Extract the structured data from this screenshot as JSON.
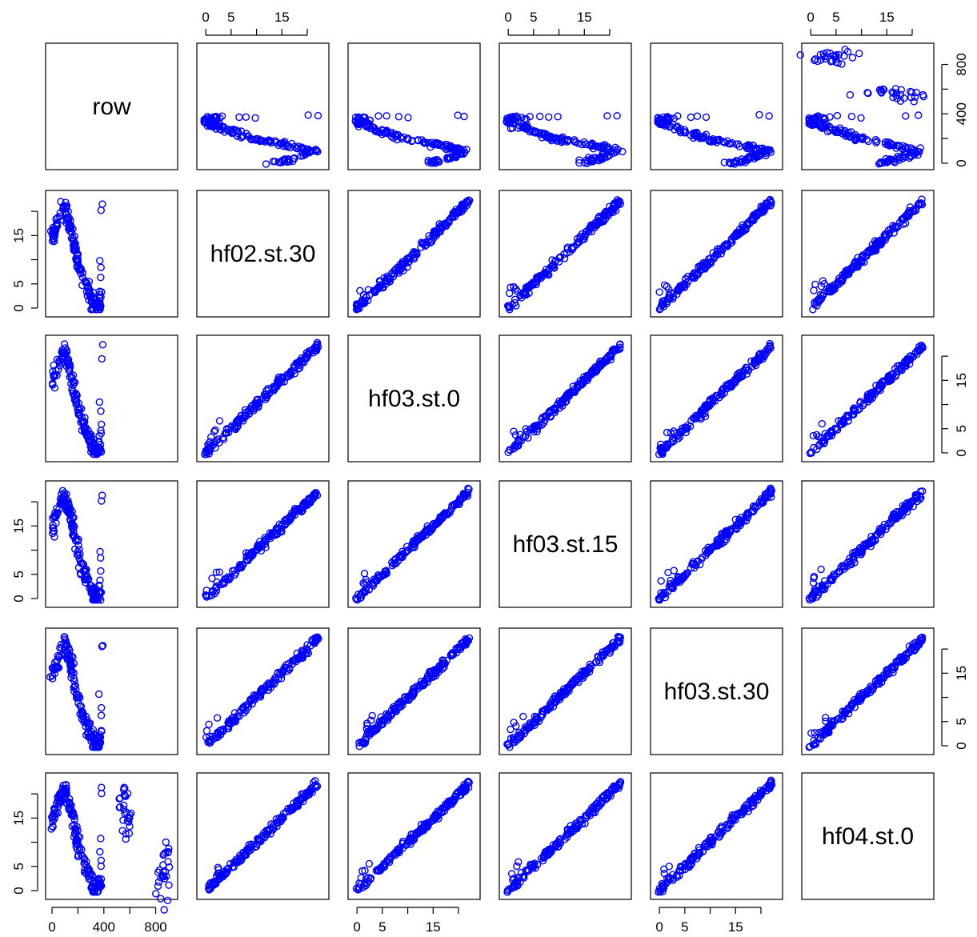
{
  "chart_data": {
    "type": "scatter",
    "variables": [
      "row",
      "hf02.st.30",
      "hf03.st.0",
      "hf03.st.15",
      "hf03.st.30",
      "hf04.st.0"
    ],
    "point_color": "#0000ff",
    "point_style": "open-circle",
    "axes": {
      "row": {
        "range": [
          0,
          920
        ],
        "ticks": [
          0,
          400,
          800
        ],
        "ticks_minor": [
          0,
          200,
          400,
          600,
          800
        ]
      },
      "value": {
        "range": [
          -0.5,
          23
        ],
        "ticks": [
          0,
          5,
          15
        ],
        "ticks_minor": [
          0,
          5,
          10,
          15,
          20
        ]
      }
    },
    "tick_labels": {
      "row": [
        "0",
        "400",
        "800"
      ],
      "value": [
        "0",
        "5",
        "15"
      ]
    },
    "series": {
      "row_vs_value_main": [
        [
          0,
          14
        ],
        [
          10,
          15
        ],
        [
          20,
          16
        ],
        [
          30,
          17
        ],
        [
          45,
          18
        ],
        [
          60,
          19
        ],
        [
          75,
          20
        ],
        [
          90,
          20.5
        ],
        [
          100,
          21
        ],
        [
          110,
          20
        ],
        [
          120,
          19
        ],
        [
          130,
          18
        ],
        [
          140,
          17
        ],
        [
          150,
          16
        ],
        [
          160,
          15
        ],
        [
          170,
          13
        ],
        [
          180,
          11.5
        ],
        [
          190,
          10.5
        ],
        [
          200,
          9.5
        ],
        [
          215,
          8
        ],
        [
          230,
          7
        ],
        [
          245,
          6
        ],
        [
          260,
          5
        ],
        [
          275,
          4
        ],
        [
          290,
          3
        ],
        [
          300,
          2
        ],
        [
          310,
          1.5
        ],
        [
          320,
          1
        ],
        [
          330,
          0.5
        ],
        [
          340,
          0
        ],
        [
          350,
          0.5
        ],
        [
          360,
          1
        ],
        [
          370,
          1.5
        ],
        [
          380,
          1
        ]
      ],
      "row_vs_value_outliers": [
        [
          385,
          21
        ],
        [
          385,
          20
        ],
        [
          370,
          10
        ],
        [
          375,
          8
        ],
        [
          380,
          6
        ],
        [
          378,
          4
        ]
      ],
      "row_vs_hf04_extra": [
        [
          520,
          18
        ],
        [
          540,
          20
        ],
        [
          560,
          17
        ],
        [
          580,
          19
        ],
        [
          590,
          14
        ],
        [
          600,
          16
        ],
        [
          570,
          12
        ],
        [
          820,
          3
        ],
        [
          840,
          2
        ],
        [
          860,
          4
        ],
        [
          880,
          6
        ],
        [
          900,
          8
        ],
        [
          870,
          1
        ],
        [
          890,
          3
        ]
      ]
    }
  }
}
